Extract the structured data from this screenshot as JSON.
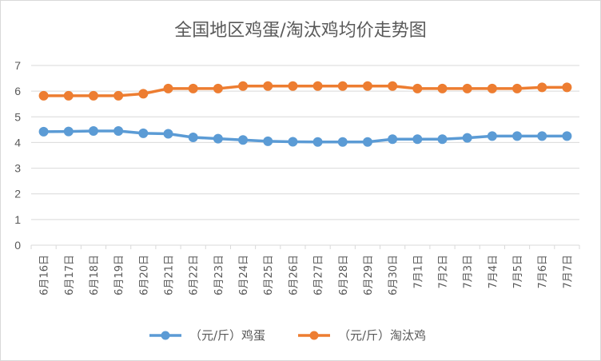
{
  "chart_data": {
    "type": "line",
    "title": "全国地区鸡蛋/淘汰鸡均价走势图",
    "categories": [
      "6月16日",
      "6月17日",
      "6月18日",
      "6月19日",
      "6月20日",
      "6月21日",
      "6月22日",
      "6月23日",
      "6月24日",
      "6月25日",
      "6月26日",
      "6月27日",
      "6月28日",
      "6月29日",
      "6月30日",
      "7月1日",
      "7月2日",
      "7月3日",
      "7月4日",
      "7月5日",
      "7月6日",
      "7月7日"
    ],
    "y_ticks": [
      "0",
      "1",
      "2",
      "3",
      "4",
      "5",
      "6",
      "7"
    ],
    "ylim": [
      0,
      7
    ],
    "grid": true,
    "legend_position": "bottom",
    "series": [
      {
        "name": "（元/斤）鸡蛋",
        "color": "#5b9bd5",
        "values": [
          4.42,
          4.43,
          4.45,
          4.45,
          4.36,
          4.34,
          4.2,
          4.15,
          4.1,
          4.05,
          4.03,
          4.02,
          4.02,
          4.02,
          4.13,
          4.13,
          4.13,
          4.18,
          4.25,
          4.25,
          4.25,
          4.25
        ]
      },
      {
        "name": "（元/斤）淘汰鸡",
        "color": "#ed7d31",
        "values": [
          5.82,
          5.82,
          5.82,
          5.82,
          5.9,
          6.1,
          6.1,
          6.1,
          6.2,
          6.2,
          6.2,
          6.2,
          6.2,
          6.2,
          6.2,
          6.1,
          6.1,
          6.1,
          6.1,
          6.1,
          6.15,
          6.15
        ]
      }
    ]
  }
}
